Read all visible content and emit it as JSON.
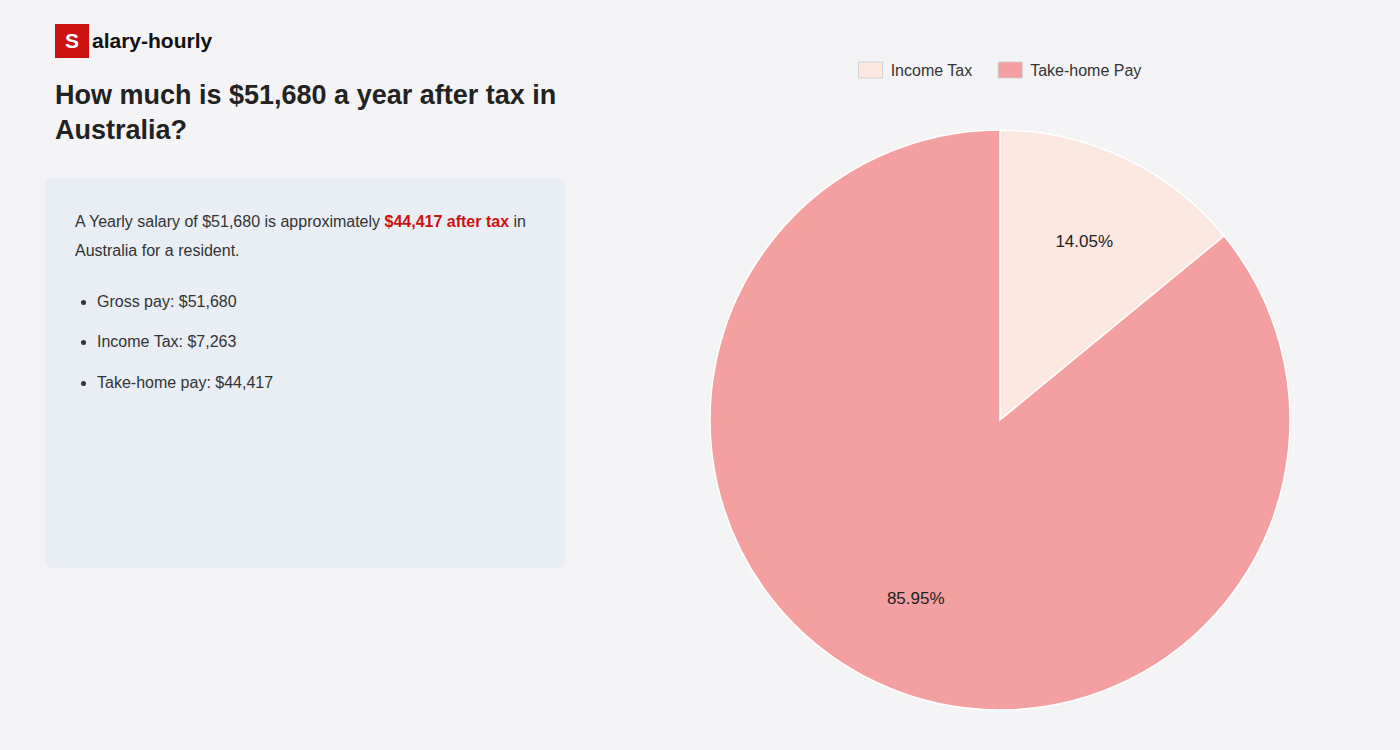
{
  "chart_data": {
    "type": "pie",
    "title": "How much is $51,680 a year after tax in Australia?",
    "categories": [
      "Income Tax",
      "Take-home Pay"
    ],
    "values": [
      14.05,
      85.95
    ],
    "value_labels": [
      "14.05%",
      "85.95%"
    ],
    "colors": [
      "#fce8e0",
      "#f4a0a0"
    ],
    "data_labels": true,
    "legend": "top",
    "annotations": [
      "S",
      "alary-hourly",
      "A Yearly salary of $51,680 is approximately ",
      "$44,417 after tax",
      " in",
      "Australia for a resident.",
      "Gross pay: $51,680",
      "Income Tax: $7,263",
      "Take-home pay: $44,417"
    ]
  }
}
